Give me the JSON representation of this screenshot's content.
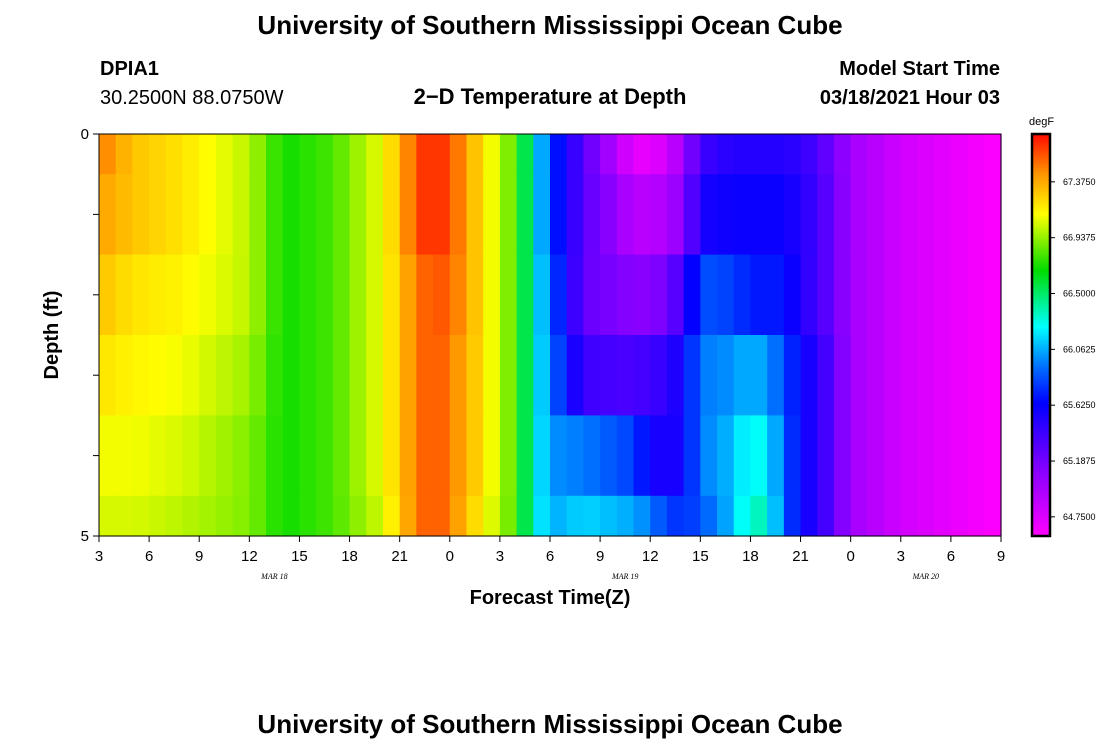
{
  "header": {
    "title": "University of Southern Mississippi Ocean Cube",
    "station": "DPIA1",
    "coords": "30.2500N 88.0750W",
    "subtitle": "2−D Temperature at Depth",
    "model_label": "Model Start Time",
    "model_time": "03/18/2021 Hour 03"
  },
  "footer": {
    "title": "University of Southern Mississippi Ocean Cube"
  },
  "chart_data": {
    "type": "heatmap",
    "title": "2−D Temperature at Depth",
    "xlabel": "Forecast Time(Z)",
    "ylabel": "Depth (ft)",
    "x_ticks": [
      "3",
      "6",
      "9",
      "12",
      "15",
      "18",
      "21",
      "0",
      "3",
      "6",
      "9",
      "12",
      "15",
      "18",
      "21",
      "0",
      "3",
      "6",
      "9"
    ],
    "x_month_labels": [
      {
        "label": "MAR  18",
        "tick_index": 3
      },
      {
        "label": "MAR  19",
        "tick_index": 10
      },
      {
        "label": "MAR  20",
        "tick_index": 16
      }
    ],
    "y_ticks": [
      "0",
      "5"
    ],
    "y_range": [
      0,
      5
    ],
    "x_range_hours": [
      0,
      54
    ],
    "colorbar": {
      "unit": "degF",
      "labels": [
        "67.3750",
        "66.9375",
        "66.5000",
        "66.0625",
        "65.6250",
        "65.1875",
        "64.7500"
      ],
      "vmin": 64.6,
      "vmax": 67.75
    },
    "depth_layers": [
      0,
      0.5,
      1.5,
      2.5,
      3.5,
      4.5,
      5
    ],
    "hour_keys": [
      0,
      2,
      5,
      9,
      11,
      14,
      17,
      19,
      20,
      21,
      22,
      23,
      25,
      26,
      27,
      29,
      32,
      33,
      34,
      35,
      36,
      38,
      39,
      40,
      41,
      42,
      43,
      45,
      48,
      54
    ],
    "layer_profiles": [
      [
        67.5,
        67.3,
        67.2,
        67.0,
        66.7,
        66.8,
        67.1,
        67.6,
        67.7,
        67.6,
        67.4,
        67.2,
        66.8,
        66.3,
        65.8,
        65.3,
        64.7,
        64.7,
        64.8,
        65.0,
        65.4,
        65.5,
        65.5,
        65.5,
        65.5,
        65.45,
        65.35,
        65.0,
        64.8,
        64.6
      ],
      [
        67.4,
        67.3,
        67.2,
        67.0,
        66.7,
        66.8,
        67.1,
        67.6,
        67.7,
        67.6,
        67.4,
        67.2,
        66.8,
        66.3,
        65.8,
        65.3,
        64.9,
        64.9,
        64.95,
        65.1,
        65.55,
        65.6,
        65.6,
        65.6,
        65.6,
        65.5,
        65.4,
        65.0,
        64.8,
        64.6
      ],
      [
        67.3,
        67.2,
        67.15,
        67.0,
        66.7,
        66.8,
        67.1,
        67.5,
        67.6,
        67.55,
        67.4,
        67.2,
        66.8,
        66.3,
        65.9,
        65.25,
        65.1,
        65.1,
        65.2,
        65.4,
        65.85,
        65.8,
        65.7,
        65.7,
        65.7,
        65.5,
        65.4,
        65.0,
        64.8,
        64.6
      ],
      [
        67.2,
        67.15,
        67.1,
        66.95,
        66.7,
        66.8,
        67.1,
        67.5,
        67.6,
        67.5,
        67.35,
        67.2,
        66.8,
        66.3,
        65.95,
        65.4,
        65.35,
        65.4,
        65.45,
        65.6,
        65.95,
        66.0,
        66.1,
        66.0,
        65.85,
        65.6,
        65.5,
        65.0,
        64.8,
        64.6
      ],
      [
        67.1,
        67.1,
        67.05,
        66.9,
        66.7,
        66.8,
        67.1,
        67.5,
        67.6,
        67.5,
        67.35,
        67.2,
        66.8,
        66.3,
        66.0,
        65.95,
        65.8,
        65.6,
        65.5,
        65.6,
        65.95,
        66.1,
        66.3,
        66.2,
        65.9,
        65.6,
        65.5,
        65.0,
        64.8,
        64.6
      ],
      [
        67.05,
        67.05,
        67.0,
        66.9,
        66.7,
        66.8,
        67.05,
        67.5,
        67.6,
        67.5,
        67.3,
        67.15,
        66.8,
        66.3,
        66.05,
        66.15,
        66.05,
        65.95,
        65.8,
        65.75,
        65.85,
        66.1,
        66.4,
        66.3,
        65.9,
        65.6,
        65.5,
        65.0,
        64.8,
        64.6
      ]
    ]
  }
}
